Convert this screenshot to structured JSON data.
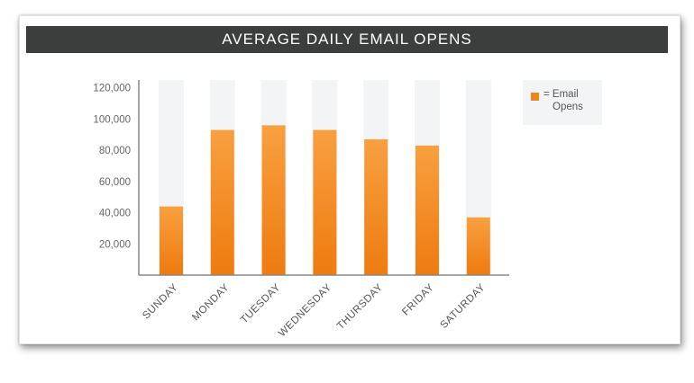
{
  "title": "AVERAGE DAILY EMAIL OPENS",
  "legend": {
    "prefix": "= ",
    "label_line1": "Email",
    "label_line2": "Opens"
  },
  "colors": {
    "bar": "#f2851f",
    "bar_dark": "#ee7b0f",
    "column_bg": "#f3f4f5",
    "title_bg": "#3c3d3d",
    "axis": "#888888"
  },
  "chart_data": {
    "type": "bar",
    "title": "AVERAGE DAILY EMAIL OPENS",
    "categories": [
      "SUNDAY",
      "MONDAY",
      "TUESDAY",
      "WEDNESDAY",
      "THURSDAY",
      "FRIDAY",
      "SATURDAY"
    ],
    "series": [
      {
        "name": "Email Opens",
        "values": [
          44000,
          93000,
          96000,
          93000,
          87000,
          83000,
          37000
        ]
      }
    ],
    "yticks": [
      "20,000",
      "40,000",
      "60,000",
      "80,000",
      "100,000",
      "120,000"
    ],
    "ytick_values": [
      20000,
      40000,
      60000,
      80000,
      100000,
      120000
    ],
    "ylim": [
      0,
      125000
    ],
    "xlabel": "",
    "ylabel": "",
    "legend_position": "right",
    "grid": false
  }
}
